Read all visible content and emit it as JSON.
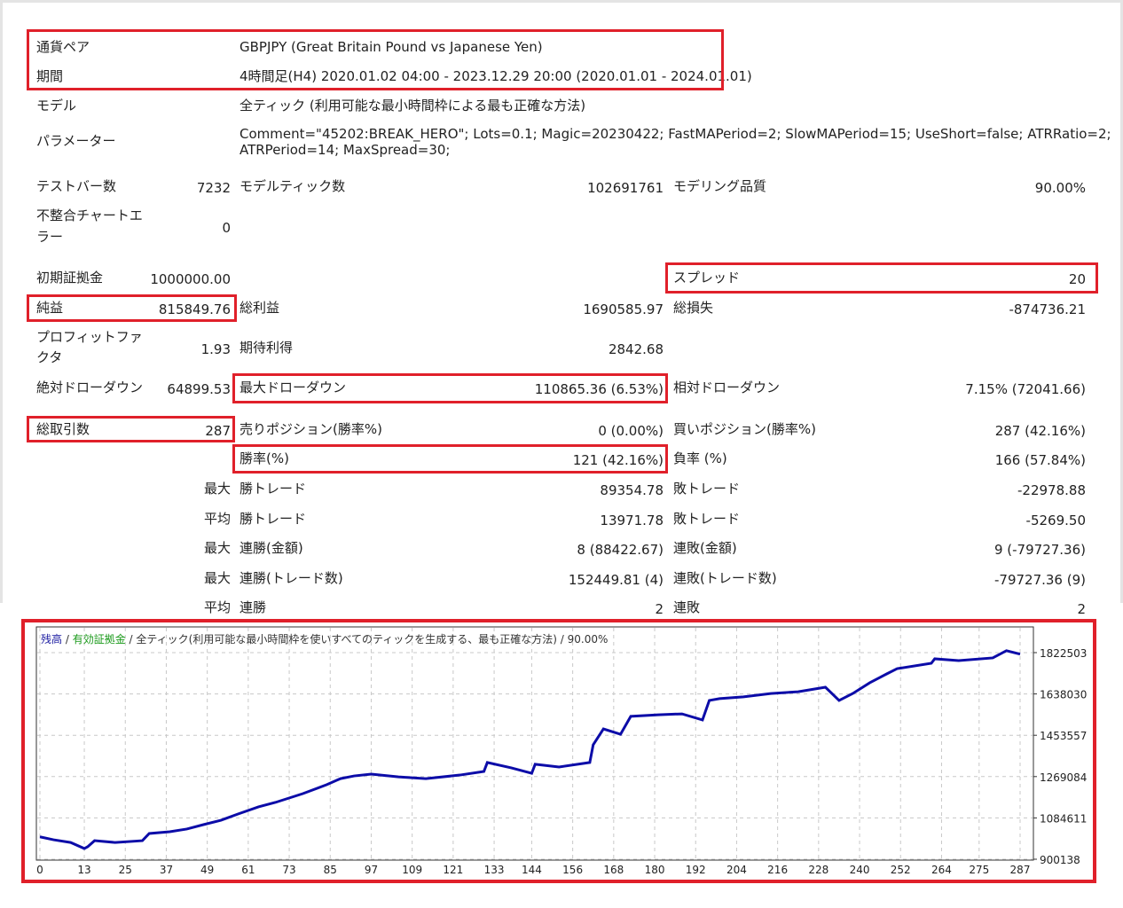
{
  "report": {
    "symbol_label": "通貨ペア",
    "symbol": "GBPJPY (Great Britain Pound vs Japanese Yen)",
    "period_label": "期間",
    "period": "4時間足(H4) 2020.01.02 04:00 - 2023.12.29 20:00 (2020.01.01 - 2024.01.01)",
    "model_label": "モデル",
    "model": "全ティック (利用可能な最小時間枠による最も正確な方法)",
    "params_label": "パラメーター",
    "params_line1": "Comment=\"45202:BREAK_HERO\"; Lots=0.1; Magic=20230422; FastMAPeriod=2; SlowMAPeriod=15; UseShort=false; ATRRatio=2;",
    "params_line2": "ATRPeriod=14; MaxSpread=30;",
    "bars_label": "テストバー数",
    "bars": "7232",
    "ticks_label": "モデルティック数",
    "ticks": "102691761",
    "quality_label": "モデリング品質",
    "quality": "90.00%",
    "mismatch_label1": "不整合チャートエ",
    "mismatch_label2": "ラー",
    "mismatch": "0",
    "deposit_label": "初期証拠金",
    "deposit": "1000000.00",
    "spread_label": "スプレッド",
    "spread": "20",
    "net_label": "純益",
    "net": "815849.76",
    "gross_profit_label": "総利益",
    "gross_profit": "1690585.97",
    "gross_loss_label": "総損失",
    "gross_loss": "-874736.21",
    "pf_label1": "プロフィットファ",
    "pf_label2": "クタ",
    "pf": "1.93",
    "expected_label": "期待利得",
    "expected": "2842.68",
    "abs_dd_label": "絶対ドローダウン",
    "abs_dd": "64899.53",
    "max_dd_label": "最大ドローダウン",
    "max_dd": "110865.36 (6.53%)",
    "rel_dd_label": "相対ドローダウン",
    "rel_dd": "7.15% (72041.66)",
    "trades_label": "総取引数",
    "trades": "287",
    "short_label": "売りポジション(勝率%)",
    "short": "0 (0.00%)",
    "long_label": "買いポジション(勝率%)",
    "long": "287 (42.16%)",
    "win_label": "勝率(%)",
    "win": "121 (42.16%)",
    "loss_label": "負率 (%)",
    "loss": "166 (57.84%)",
    "rows": [
      {
        "p": "最大",
        "a": "勝トレード",
        "av": "89354.78",
        "b": "敗トレード",
        "bv": "-22978.88"
      },
      {
        "p": "平均",
        "a": "勝トレード",
        "av": "13971.78",
        "b": "敗トレード",
        "bv": "-5269.50"
      },
      {
        "p": "最大",
        "a": "連勝(金額)",
        "av": "8 (88422.67)",
        "b": "連敗(金額)",
        "bv": "9 (-79727.36)"
      },
      {
        "p": "最大",
        "a": "連勝(トレード数)",
        "av": "152449.81 (4)",
        "b": "連敗(トレード数)",
        "bv": "-79727.36 (9)"
      },
      {
        "p": "平均",
        "a": "連勝",
        "av": "2",
        "b": "連敗",
        "bv": "2"
      }
    ]
  },
  "chart_data": {
    "type": "line",
    "legend": {
      "balance": "残高",
      "sep": " / ",
      "equity": "有効証拠金",
      "rest": " / 全ティック(利用可能な最小時間枠を使いすべてのティックを生成する、最も正確な方法) / 90.00%"
    },
    "x_ticks": [
      "0",
      "13",
      "25",
      "37",
      "49",
      "61",
      "73",
      "85",
      "97",
      "109",
      "121",
      "133",
      "144",
      "156",
      "168",
      "180",
      "192",
      "204",
      "216",
      "228",
      "240",
      "252",
      "264",
      "275",
      "287"
    ],
    "y_ticks": [
      "1822503",
      "1638030",
      "1453557",
      "1269084",
      "1084611",
      "900138"
    ],
    "xlim": [
      0,
      287
    ],
    "ylim": [
      900138,
      1822503
    ],
    "series": [
      {
        "name": "残高",
        "color": "#0c0ca8",
        "x": [
          0,
          4,
          9,
          13,
          14,
          16,
          22,
          30,
          32,
          38,
          43,
          48,
          53,
          58,
          64,
          69,
          77,
          84,
          88,
          92,
          97,
          105,
          113,
          123,
          130,
          131,
          138,
          144,
          145,
          152,
          161,
          162,
          165,
          170,
          173,
          181,
          188,
          194,
          196,
          199,
          206,
          214,
          222,
          230,
          234,
          238,
          243,
          248,
          251,
          261,
          262,
          269,
          279,
          283,
          287
        ],
        "y": [
          1000000,
          987000,
          975000,
          948000,
          956000,
          983000,
          975000,
          983000,
          1015000,
          1023000,
          1035000,
          1055000,
          1074000,
          1102000,
          1134000,
          1154000,
          1193000,
          1233000,
          1260000,
          1272000,
          1280000,
          1268000,
          1260000,
          1276000,
          1292000,
          1332000,
          1308000,
          1284000,
          1324000,
          1312000,
          1332000,
          1411000,
          1482000,
          1458000,
          1538000,
          1545000,
          1549000,
          1522000,
          1609000,
          1617000,
          1625000,
          1640000,
          1648000,
          1668000,
          1609000,
          1640000,
          1688000,
          1728000,
          1751000,
          1775000,
          1795000,
          1787000,
          1799000,
          1831000,
          1815850
        ]
      }
    ]
  }
}
